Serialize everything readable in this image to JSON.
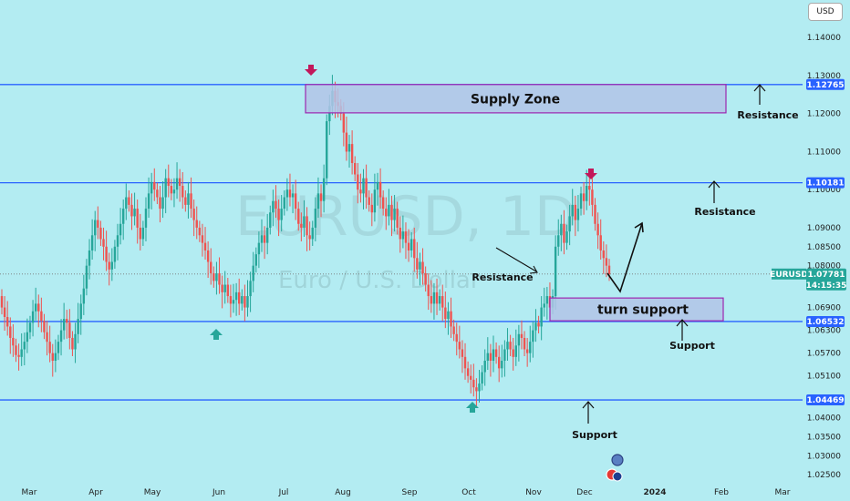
{
  "chart_data": {
    "type": "candlestick",
    "symbol": "EURUSD, 1D",
    "description": "Euro / U.S. Dollar",
    "currency_button": "USD",
    "ylim": [
      1.022,
      1.147
    ],
    "y_ticks": [
      "1.14000",
      "1.13000",
      "1.12000",
      "1.11000",
      "1.10000",
      "1.09000",
      "1.08500",
      "1.08000",
      "1.06900",
      "1.06300",
      "1.05700",
      "1.05100",
      "1.04000",
      "1.03500",
      "1.03000",
      "1.02500"
    ],
    "x_ticks": [
      "Mar",
      "Apr",
      "May",
      "Jun",
      "Jul",
      "Aug",
      "Sep",
      "Oct",
      "Nov",
      "Dec",
      "2024",
      "Feb",
      "Mar"
    ],
    "levels": [
      {
        "value": 1.12765,
        "label": "1.12765",
        "color": "#2962ff"
      },
      {
        "value": 1.10181,
        "label": "1.10181",
        "color": "#2962ff"
      },
      {
        "value": 1.06532,
        "label": "1.06532",
        "color": "#2962ff"
      },
      {
        "value": 1.04469,
        "label": "1.04469",
        "color": "#2962ff"
      }
    ],
    "current_price": {
      "symbol": "EURUSD",
      "value": "1.07781",
      "countdown": "14:15:35",
      "color": "#26a69a"
    },
    "zones": [
      {
        "label": "Supply Zone",
        "top": 1.12765,
        "bottom": 1.1202
      },
      {
        "label": "turn support",
        "top": 1.0715,
        "bottom": 1.0655
      }
    ],
    "annotations": [
      "Resistance",
      "Resistance",
      "Resistance",
      "Support",
      "Support"
    ],
    "colors": {
      "up": "#26a69a",
      "down": "#ef5350",
      "background": "#b3ecf2",
      "zone_fill": "#b1c4e8",
      "zone_border": "#9c27b0"
    },
    "candles_close": [
      1.069,
      1.0665,
      1.064,
      1.061,
      1.059,
      1.0565,
      1.056,
      1.058,
      1.06,
      1.0625,
      1.065,
      1.068,
      1.07,
      1.068,
      1.0655,
      1.0625,
      1.06,
      1.057,
      1.055,
      1.057,
      1.06,
      1.063,
      1.066,
      1.065,
      1.061,
      1.058,
      1.062,
      1.066,
      1.07,
      1.074,
      1.08,
      1.084,
      1.088,
      1.092,
      1.09,
      1.087,
      1.085,
      1.081,
      1.079,
      1.081,
      1.085,
      1.088,
      1.091,
      1.095,
      1.098,
      1.096,
      1.093,
      1.095,
      1.09,
      1.087,
      1.09,
      1.095,
      1.099,
      1.102,
      1.1,
      1.098,
      1.095,
      1.098,
      1.103,
      1.101,
      1.099,
      1.1,
      1.103,
      1.101,
      1.098,
      1.096,
      1.099,
      1.095,
      1.092,
      1.09,
      1.088,
      1.086,
      1.084,
      1.081,
      1.078,
      1.076,
      1.078,
      1.075,
      1.073,
      1.075,
      1.072,
      1.07,
      1.071,
      1.073,
      1.07,
      1.072,
      1.069,
      1.072,
      1.076,
      1.08,
      1.083,
      1.086,
      1.088,
      1.086,
      1.09,
      1.094,
      1.097,
      1.095,
      1.092,
      1.095,
      1.098,
      1.1,
      1.098,
      1.099,
      1.095,
      1.091,
      1.09,
      1.093,
      1.088,
      1.087,
      1.09,
      1.095,
      1.099,
      1.097,
      1.103,
      1.118,
      1.122,
      1.126,
      1.123,
      1.122,
      1.12,
      1.115,
      1.11,
      1.112,
      1.107,
      1.104,
      1.1,
      1.099,
      1.103,
      1.098,
      1.096,
      1.094,
      1.1,
      1.102,
      1.098,
      1.095,
      1.093,
      1.096,
      1.092,
      1.095,
      1.09,
      1.087,
      1.089,
      1.086,
      1.084,
      1.087,
      1.082,
      1.079,
      1.081,
      1.078,
      1.075,
      1.072,
      1.07,
      1.073,
      1.07,
      1.072,
      1.069,
      1.066,
      1.068,
      1.064,
      1.062,
      1.06,
      1.058,
      1.056,
      1.053,
      1.051,
      1.05,
      1.048,
      1.047,
      1.049,
      1.052,
      1.055,
      1.057,
      1.055,
      1.058,
      1.056,
      1.053,
      1.055,
      1.058,
      1.06,
      1.058,
      1.056,
      1.059,
      1.062,
      1.061,
      1.058,
      1.057,
      1.06,
      1.063,
      1.065,
      1.064,
      1.069,
      1.07,
      1.072,
      1.069,
      1.072,
      1.085,
      1.088,
      1.091,
      1.086,
      1.089,
      1.093,
      1.096,
      1.092,
      1.095,
      1.099,
      1.097,
      1.101,
      1.1,
      1.096,
      1.091,
      1.088,
      1.084,
      1.082,
      1.08,
      1.0778
    ]
  }
}
